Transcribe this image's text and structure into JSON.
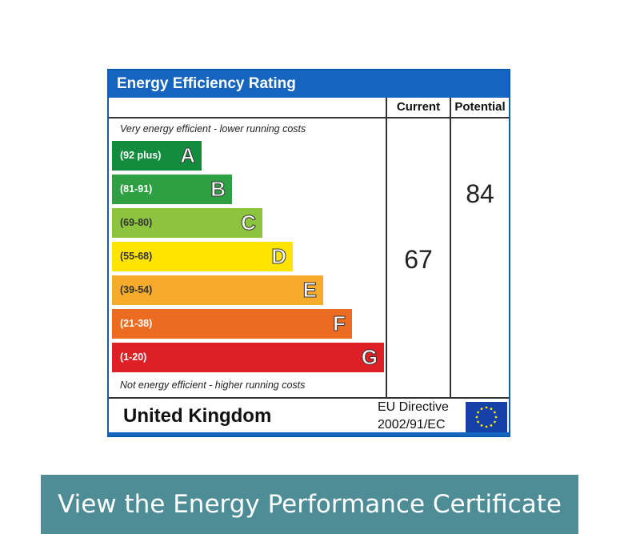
{
  "epc": {
    "title": "Energy Efficiency Rating",
    "col_current": "Current",
    "col_potential": "Potential",
    "note_top": "Very energy efficient - lower running costs",
    "note_bottom": "Not energy efficient - higher running costs",
    "bands": [
      {
        "range": "(92 plus)",
        "letter": "A",
        "color": "#138c3d"
      },
      {
        "range": "(81-91)",
        "letter": "B",
        "color": "#2ea043"
      },
      {
        "range": "(69-80)",
        "letter": "C",
        "color": "#8cc43f"
      },
      {
        "range": "(55-68)",
        "letter": "D",
        "color": "#ffe400"
      },
      {
        "range": "(39-54)",
        "letter": "E",
        "color": "#f6ab2a"
      },
      {
        "range": "(21-38)",
        "letter": "F",
        "color": "#eb6b21"
      },
      {
        "range": "(1-20)",
        "letter": "G",
        "color": "#df1f26"
      }
    ],
    "current_score": "67",
    "potential_score": "84",
    "country": "United Kingdom",
    "eu_line1": "EU Directive",
    "eu_line2": "2002/91/EC"
  },
  "cta_label": "View the Energy Performance Certificate"
}
